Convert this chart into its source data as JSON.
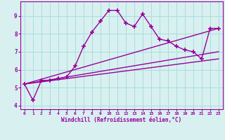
{
  "xlabel": "Windchill (Refroidissement éolien,°C)",
  "x_values": [
    0,
    1,
    2,
    3,
    4,
    5,
    6,
    7,
    8,
    9,
    10,
    11,
    12,
    13,
    14,
    15,
    16,
    17,
    18,
    19,
    20,
    21,
    22,
    23
  ],
  "main_line": [
    5.2,
    4.3,
    5.4,
    5.4,
    5.5,
    5.6,
    6.2,
    7.3,
    8.1,
    8.7,
    9.3,
    9.3,
    8.6,
    8.4,
    9.1,
    8.4,
    7.7,
    7.6,
    7.3,
    7.1,
    7.0,
    6.6,
    8.3,
    8.3
  ],
  "reg_lines": [
    {
      "x_start": 0,
      "x_end": 23,
      "y_start": 5.2,
      "y_end": 8.3
    },
    {
      "x_start": 0,
      "x_end": 23,
      "y_start": 5.2,
      "y_end": 7.0
    },
    {
      "x_start": 0,
      "x_end": 23,
      "y_start": 5.2,
      "y_end": 6.6
    }
  ],
  "ylim": [
    3.8,
    9.8
  ],
  "xlim": [
    -0.5,
    23.5
  ],
  "yticks": [
    4,
    5,
    6,
    7,
    8,
    9
  ],
  "xticks": [
    0,
    1,
    2,
    3,
    4,
    5,
    6,
    7,
    8,
    9,
    10,
    11,
    12,
    13,
    14,
    15,
    16,
    17,
    18,
    19,
    20,
    21,
    22,
    23
  ],
  "line_color": "#990099",
  "bg_color": "#d8f0f0",
  "grid_color": "#aadddd",
  "text_color": "#990099",
  "marker": "+",
  "marker_size": 4,
  "line_width": 1.0
}
